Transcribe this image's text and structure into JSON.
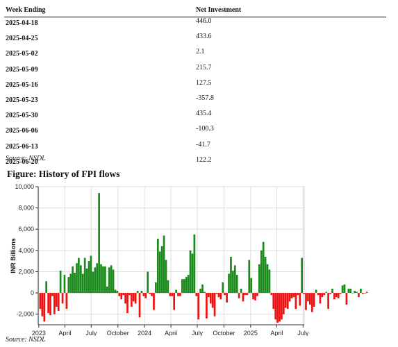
{
  "table": {
    "headers": [
      "Week Ending",
      "Net Investment"
    ],
    "rows": [
      [
        "2025-04-18",
        "446.0"
      ],
      [
        "2025-04-25",
        "433.6"
      ],
      [
        "2025-05-02",
        "2.1"
      ],
      [
        "2025-05-09",
        "215.7"
      ],
      [
        "2025-05-16",
        "127.5"
      ],
      [
        "2025-05-23",
        "-357.8"
      ],
      [
        "2025-05-30",
        "435.4"
      ],
      [
        "2025-06-06",
        "-100.3"
      ],
      [
        "2025-06-13",
        "-41.7"
      ],
      [
        "2025-06-20",
        "122.2"
      ]
    ],
    "source": "Source: NSDL"
  },
  "figure": {
    "title": "Figure: History of FPI flows",
    "source": "Source: NSDL"
  },
  "colors": {
    "positive": "#1a8a1a",
    "negative": "#ee1111",
    "grid": "#dddddd"
  },
  "chart_data": {
    "type": "bar",
    "ylabel": "INR Billions",
    "xlabel": "",
    "ylim": [
      -3000,
      10000
    ],
    "yticks": [
      -2000,
      0,
      2000,
      4000,
      6000,
      8000,
      10000
    ],
    "ytick_labels": [
      "-2,000",
      "0",
      "2,000",
      "4,000",
      "6,000",
      "8,000",
      "10,000"
    ],
    "xticks": [
      {
        "label": "2023",
        "date": "2023-01-01"
      },
      {
        "label": "April",
        "date": "2023-04-01"
      },
      {
        "label": "July",
        "date": "2023-07-01"
      },
      {
        "label": "October",
        "date": "2023-10-01"
      },
      {
        "label": "2024",
        "date": "2024-01-01"
      },
      {
        "label": "April",
        "date": "2024-04-01"
      },
      {
        "label": "July",
        "date": "2024-07-01"
      },
      {
        "label": "October",
        "date": "2024-10-01"
      },
      {
        "label": "2025",
        "date": "2025-01-01"
      },
      {
        "label": "April",
        "date": "2025-04-01"
      },
      {
        "label": "July",
        "date": "2025-07-01"
      }
    ],
    "xlim": [
      "2022-12-30",
      "2025-07-05"
    ],
    "grid": true,
    "series": [
      {
        "start": "2023-01-06",
        "step_days": 7,
        "values": [
          -1500,
          -2200,
          -2700,
          1100,
          -1900,
          -2100,
          -300,
          -2000,
          -1300,
          -1700,
          2100,
          -1000,
          1700,
          -1500,
          1500,
          1800,
          2500,
          1900,
          2800,
          3300,
          2600,
          1800,
          3300,
          2300,
          3000,
          3500,
          2000,
          2400,
          2800,
          9400,
          2700,
          2500,
          2500,
          600,
          2400,
          2600,
          2200,
          300,
          200,
          -300,
          -600,
          -200,
          -1000,
          -1900,
          -200,
          -1300,
          -800,
          -1000,
          200,
          -2300,
          200,
          -300,
          -500,
          2000,
          -100,
          -300,
          -1600,
          1000,
          5100,
          3900,
          4400,
          5400,
          3100,
          1200,
          -300,
          -300,
          -1600,
          300,
          -300,
          -300,
          1300,
          1300,
          1500,
          1700,
          4000,
          3700,
          5500,
          -300,
          -2500,
          400,
          800,
          100,
          -2400,
          -400,
          -1000,
          -1400,
          -2200,
          -100,
          -400,
          -600,
          1000,
          -200,
          -900,
          1800,
          3400,
          2100,
          2600,
          1700,
          -500,
          400,
          -800,
          -200,
          -200,
          3100,
          1400,
          -600,
          -700,
          -300,
          2700,
          4000,
          4800,
          3400,
          2700,
          2200,
          -200,
          -1500,
          -2500,
          -2800,
          -2700,
          -2500,
          -2000,
          -1400,
          -1500,
          -800,
          -500,
          -400,
          -1500,
          -200,
          -1200,
          3300,
          -100,
          -1600,
          -800,
          -1100,
          -1800,
          -1300,
          300,
          -200,
          -1000,
          -400,
          -200,
          100,
          -1500,
          -100,
          400,
          -600,
          -400,
          -500,
          -100,
          700,
          800,
          -1100,
          400,
          400,
          0,
          200,
          100,
          -400,
          400,
          -100,
          -50,
          100
        ],
        "values_note": "weekly net FPI investment, INR billions"
      }
    ]
  }
}
